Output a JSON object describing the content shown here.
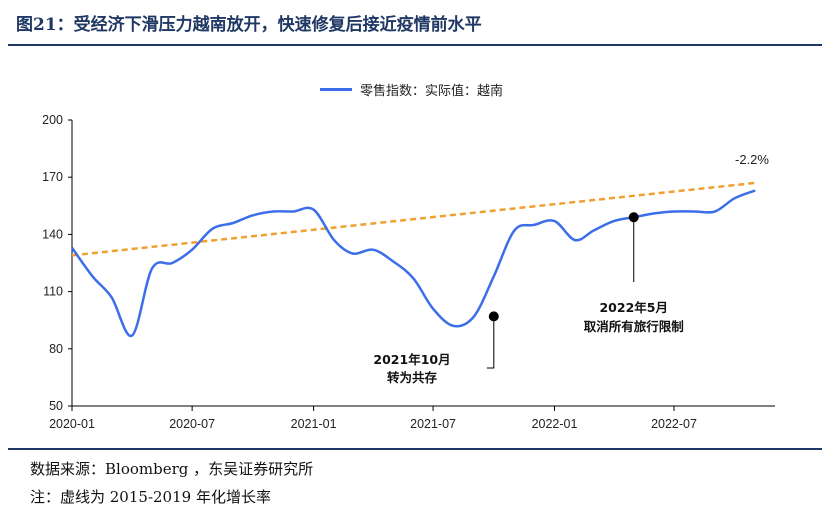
{
  "header": {
    "title": "图21：受经济下滑压力越南放开，快速修复后接近疫情前水平"
  },
  "footer": {
    "source": "数据来源：Bloomberg ，东吴证券研究所",
    "note": "注：虚线为 2015-2019 年化增长率"
  },
  "colors": {
    "title": "#1f3864",
    "actual_line": "#3b6ee8",
    "trend_line": "#f0a030"
  },
  "chart_data": {
    "type": "line",
    "title": "",
    "xlabel": "",
    "ylabel": "",
    "ylim": [
      50,
      200
    ],
    "yticks": [
      50,
      80,
      110,
      140,
      170,
      200
    ],
    "xtick_labels": [
      "2020-01",
      "2020-07",
      "2021-01",
      "2021-07",
      "2022-01",
      "2022-07"
    ],
    "grid": false,
    "legend_position": "top-center",
    "series": [
      {
        "name": "零售指数：实际值：越南",
        "style": "solid",
        "color": "#3b6ee8",
        "points": [
          [
            "2020-01-01",
            133
          ],
          [
            "2020-02-01",
            118
          ],
          [
            "2020-03-01",
            107
          ],
          [
            "2020-04-01",
            87
          ],
          [
            "2020-05-01",
            122
          ],
          [
            "2020-06-01",
            125
          ],
          [
            "2020-07-01",
            132
          ],
          [
            "2020-08-01",
            143
          ],
          [
            "2020-09-01",
            146
          ],
          [
            "2020-10-01",
            150
          ],
          [
            "2020-11-01",
            152
          ],
          [
            "2020-12-01",
            152
          ],
          [
            "2021-01-01",
            153
          ],
          [
            "2021-02-01",
            137
          ],
          [
            "2021-03-01",
            130
          ],
          [
            "2021-04-01",
            132
          ],
          [
            "2021-05-01",
            126
          ],
          [
            "2021-06-01",
            117
          ],
          [
            "2021-07-01",
            101
          ],
          [
            "2021-08-01",
            92
          ],
          [
            "2021-09-01",
            97
          ],
          [
            "2021-10-01",
            118
          ],
          [
            "2021-11-01",
            142
          ],
          [
            "2021-12-01",
            145
          ],
          [
            "2022-01-01",
            147
          ],
          [
            "2022-02-01",
            137
          ],
          [
            "2022-03-01",
            142
          ],
          [
            "2022-04-01",
            147
          ],
          [
            "2022-05-01",
            149
          ],
          [
            "2022-06-01",
            151
          ],
          [
            "2022-07-01",
            152
          ],
          [
            "2022-08-01",
            152
          ],
          [
            "2022-09-01",
            152
          ],
          [
            "2022-10-01",
            159
          ],
          [
            "2022-11-01",
            163
          ]
        ]
      },
      {
        "name": "",
        "style": "dashed",
        "color": "#f0a030",
        "points": [
          [
            "2020-01-01",
            129
          ],
          [
            "2022-11-01",
            167
          ]
        ]
      }
    ],
    "annotations": [
      {
        "date": "2021-10-01",
        "value": 97,
        "lines": [
          "2021年10月",
          "转为共存"
        ]
      },
      {
        "date": "2022-05-01",
        "value": 149,
        "lines": [
          "2022年5月",
          "取消所有旅行限制"
        ]
      }
    ],
    "end_label": "-2.2%"
  }
}
